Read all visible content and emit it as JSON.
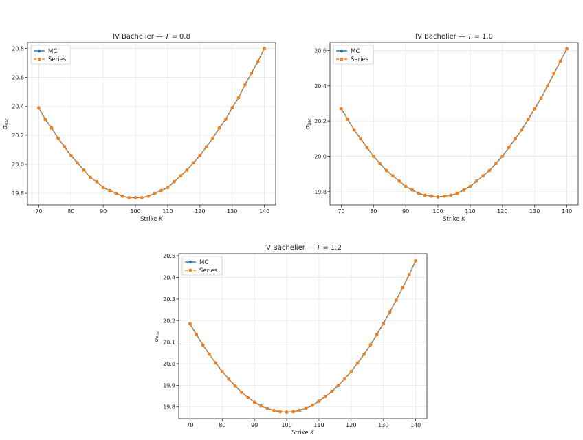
{
  "chart_data": [
    {
      "type": "line",
      "title": "IV Bachelier — T = 0.8",
      "title_prefix": "IV Bachelier — ",
      "title_var": "T",
      "title_value": " = 0.8",
      "xlabel": "Strike",
      "xlabel_var": "K",
      "ylabel": "σ",
      "ylabel_sub": "Bac",
      "xlim": [
        66.5,
        143.5
      ],
      "ylim": [
        19.72,
        20.84
      ],
      "xticks": [
        "70",
        "80",
        "90",
        "100",
        "110",
        "120",
        "130",
        "140"
      ],
      "yticks": [
        "19.8",
        "20.0",
        "20.2",
        "20.4",
        "20.6",
        "20.8"
      ],
      "grid": true,
      "legend": "top-left",
      "x": [
        70,
        72,
        74,
        76,
        78,
        80,
        82,
        84,
        86,
        88,
        90,
        92,
        94,
        96,
        98,
        100,
        102,
        104,
        106,
        108,
        110,
        112,
        114,
        116,
        118,
        120,
        122,
        124,
        126,
        128,
        130,
        132,
        134,
        136,
        138,
        140
      ],
      "series": [
        {
          "name": "MC",
          "color": "#1f77b4",
          "marker": "circle",
          "style": "solid",
          "values": [
            20.39,
            20.31,
            20.25,
            20.18,
            20.12,
            20.06,
            20.01,
            19.96,
            19.91,
            19.88,
            19.84,
            19.82,
            19.8,
            19.78,
            19.77,
            19.77,
            19.77,
            19.78,
            19.8,
            19.82,
            19.84,
            19.88,
            19.92,
            19.96,
            20.01,
            20.06,
            20.12,
            20.18,
            20.25,
            20.31,
            20.39,
            20.46,
            20.55,
            20.63,
            20.71,
            20.8
          ]
        },
        {
          "name": "Series",
          "color": "#ff7f0e",
          "marker": "square",
          "style": "dashed",
          "values": [
            20.39,
            20.31,
            20.25,
            20.18,
            20.12,
            20.06,
            20.01,
            19.96,
            19.91,
            19.88,
            19.84,
            19.82,
            19.8,
            19.78,
            19.77,
            19.77,
            19.77,
            19.78,
            19.8,
            19.82,
            19.84,
            19.88,
            19.92,
            19.96,
            20.01,
            20.06,
            20.12,
            20.18,
            20.25,
            20.31,
            20.39,
            20.46,
            20.55,
            20.63,
            20.71,
            20.8
          ]
        }
      ]
    },
    {
      "type": "line",
      "title": "IV Bachelier — T = 1.0",
      "title_prefix": "IV Bachelier — ",
      "title_var": "T",
      "title_value": " = 1.0",
      "xlabel": "Strike",
      "xlabel_var": "K",
      "ylabel": "σ",
      "ylabel_sub": "Bac",
      "xlim": [
        66.5,
        143.5
      ],
      "ylim": [
        19.725,
        20.645
      ],
      "xticks": [
        "70",
        "80",
        "90",
        "100",
        "110",
        "120",
        "130",
        "140"
      ],
      "yticks": [
        "19.8",
        "20.0",
        "20.2",
        "20.4",
        "20.6"
      ],
      "grid": true,
      "legend": "top-left",
      "x": [
        70,
        72,
        74,
        76,
        78,
        80,
        82,
        84,
        86,
        88,
        90,
        92,
        94,
        96,
        98,
        100,
        102,
        104,
        106,
        108,
        110,
        112,
        114,
        116,
        118,
        120,
        122,
        124,
        126,
        128,
        130,
        132,
        134,
        136,
        138,
        140
      ],
      "series": [
        {
          "name": "MC",
          "color": "#1f77b4",
          "marker": "circle",
          "style": "solid",
          "values": [
            20.27,
            20.21,
            20.15,
            20.1,
            20.05,
            20.0,
            19.96,
            19.92,
            19.89,
            19.86,
            19.83,
            19.81,
            19.79,
            19.78,
            19.775,
            19.77,
            19.775,
            19.78,
            19.79,
            19.81,
            19.83,
            19.86,
            19.89,
            19.92,
            19.96,
            20.0,
            20.05,
            20.1,
            20.15,
            20.21,
            20.27,
            20.33,
            20.4,
            20.47,
            20.54,
            20.61
          ]
        },
        {
          "name": "Series",
          "color": "#ff7f0e",
          "marker": "square",
          "style": "dashed",
          "values": [
            20.27,
            20.21,
            20.15,
            20.1,
            20.05,
            20.0,
            19.96,
            19.92,
            19.89,
            19.86,
            19.83,
            19.81,
            19.79,
            19.78,
            19.775,
            19.77,
            19.775,
            19.78,
            19.79,
            19.81,
            19.83,
            19.86,
            19.89,
            19.92,
            19.96,
            20.0,
            20.05,
            20.1,
            20.15,
            20.21,
            20.27,
            20.33,
            20.4,
            20.47,
            20.54,
            20.61
          ]
        }
      ]
    },
    {
      "type": "line",
      "title": "IV Bachelier — T = 1.2",
      "title_prefix": "IV Bachelier — ",
      "title_var": "T",
      "title_value": " = 1.2",
      "xlabel": "Strike",
      "xlabel_var": "K",
      "ylabel": "σ",
      "ylabel_sub": "Bac",
      "xlim": [
        66.5,
        143.5
      ],
      "ylim": [
        19.745,
        20.51
      ],
      "xticks": [
        "70",
        "80",
        "90",
        "100",
        "110",
        "120",
        "130",
        "140"
      ],
      "yticks": [
        "19.8",
        "19.9",
        "20.0",
        "20.1",
        "20.2",
        "20.3",
        "20.4",
        "20.5"
      ],
      "grid": true,
      "legend": "top-left",
      "x": [
        70,
        72,
        74,
        76,
        78,
        80,
        82,
        84,
        86,
        88,
        90,
        92,
        94,
        96,
        98,
        100,
        102,
        104,
        106,
        108,
        110,
        112,
        114,
        116,
        118,
        120,
        122,
        124,
        126,
        128,
        130,
        132,
        134,
        136,
        138,
        140
      ],
      "series": [
        {
          "name": "MC",
          "color": "#1f77b4",
          "marker": "circle",
          "style": "solid",
          "values": [
            20.185,
            20.135,
            20.087,
            20.044,
            20.003,
            19.964,
            19.929,
            19.897,
            19.868,
            19.843,
            19.822,
            19.805,
            19.792,
            19.782,
            19.777,
            19.775,
            19.777,
            19.783,
            19.793,
            19.808,
            19.826,
            19.848,
            19.872,
            19.899,
            19.93,
            19.964,
            20.003,
            20.044,
            20.088,
            20.136,
            20.187,
            20.24,
            20.295,
            20.353,
            20.413,
            20.477
          ]
        },
        {
          "name": "Series",
          "color": "#ff7f0e",
          "marker": "square",
          "style": "dashed",
          "values": [
            20.185,
            20.135,
            20.087,
            20.044,
            20.003,
            19.964,
            19.929,
            19.897,
            19.868,
            19.843,
            19.822,
            19.805,
            19.792,
            19.782,
            19.777,
            19.775,
            19.777,
            19.783,
            19.793,
            19.808,
            19.826,
            19.848,
            19.872,
            19.899,
            19.93,
            19.964,
            20.003,
            20.044,
            20.088,
            20.136,
            20.187,
            20.24,
            20.295,
            20.353,
            20.413,
            20.477
          ]
        }
      ]
    }
  ]
}
